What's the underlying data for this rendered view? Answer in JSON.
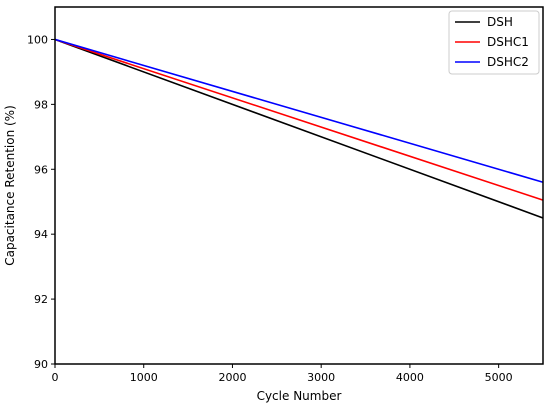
{
  "chart_data": {
    "type": "line",
    "title": "",
    "xlabel": "Cycle Number",
    "ylabel": "Capacitance Retention (%)",
    "xlim": [
      0,
      5500
    ],
    "ylim": [
      90,
      101
    ],
    "xticks": [
      0,
      1000,
      2000,
      3000,
      4000,
      5000
    ],
    "yticks": [
      90,
      92,
      94,
      96,
      98,
      100
    ],
    "grid": false,
    "legend_position": "top-right",
    "series": [
      {
        "name": "DSH",
        "color": "#000000",
        "x": [
          0,
          5500
        ],
        "y": [
          100,
          94.5
        ]
      },
      {
        "name": "DSHC1",
        "color": "#ff0000",
        "x": [
          0,
          5500
        ],
        "y": [
          100,
          95.05
        ]
      },
      {
        "name": "DSHC2",
        "color": "#0000ff",
        "x": [
          0,
          5500
        ],
        "y": [
          100,
          95.6
        ]
      }
    ]
  }
}
